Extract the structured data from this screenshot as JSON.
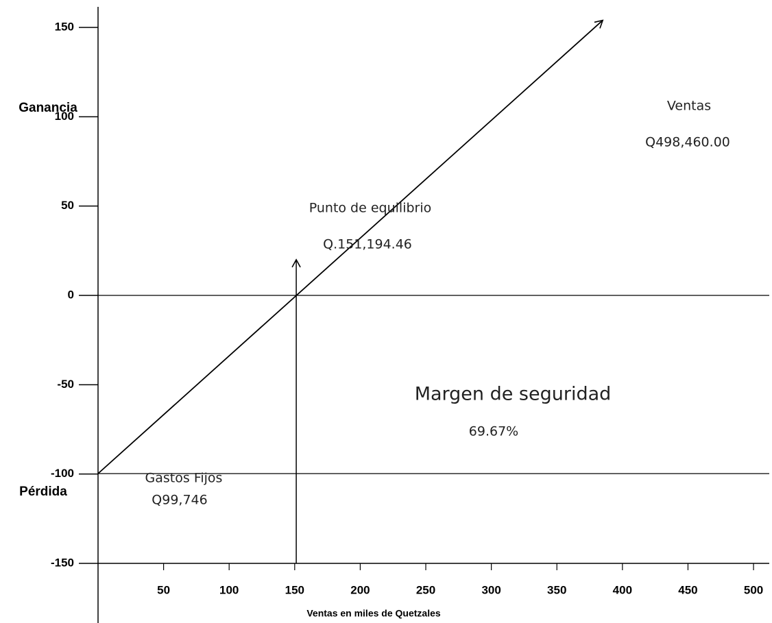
{
  "chart_data": {
    "type": "line",
    "x_label": "Ventas en miles de Quetzales",
    "y_top_label": "Ganancia",
    "y_bottom_label": "Pérdida",
    "xlim": [
      0,
      512
    ],
    "ylim": [
      -150,
      150
    ],
    "xticks": [
      50,
      100,
      150,
      200,
      250,
      300,
      350,
      400,
      450,
      500
    ],
    "yticks": [
      -150,
      -100,
      -50,
      0,
      50,
      100,
      150
    ],
    "series": [
      {
        "color": "#000000",
        "x": [
          0,
          385
        ],
        "values": [
          -99.746,
          154
        ]
      }
    ],
    "hlines": [
      0,
      -99.746
    ],
    "breakeven_arrow": {
      "x": 151.19,
      "top": 20
    },
    "annotations": [
      "Ventas",
      "Q498,460.00",
      "Punto de equilibrio",
      "Q.151,194.46",
      "Margen de seguridad",
      "69.67%",
      "Gastos Fijos",
      "Q99,746"
    ]
  }
}
